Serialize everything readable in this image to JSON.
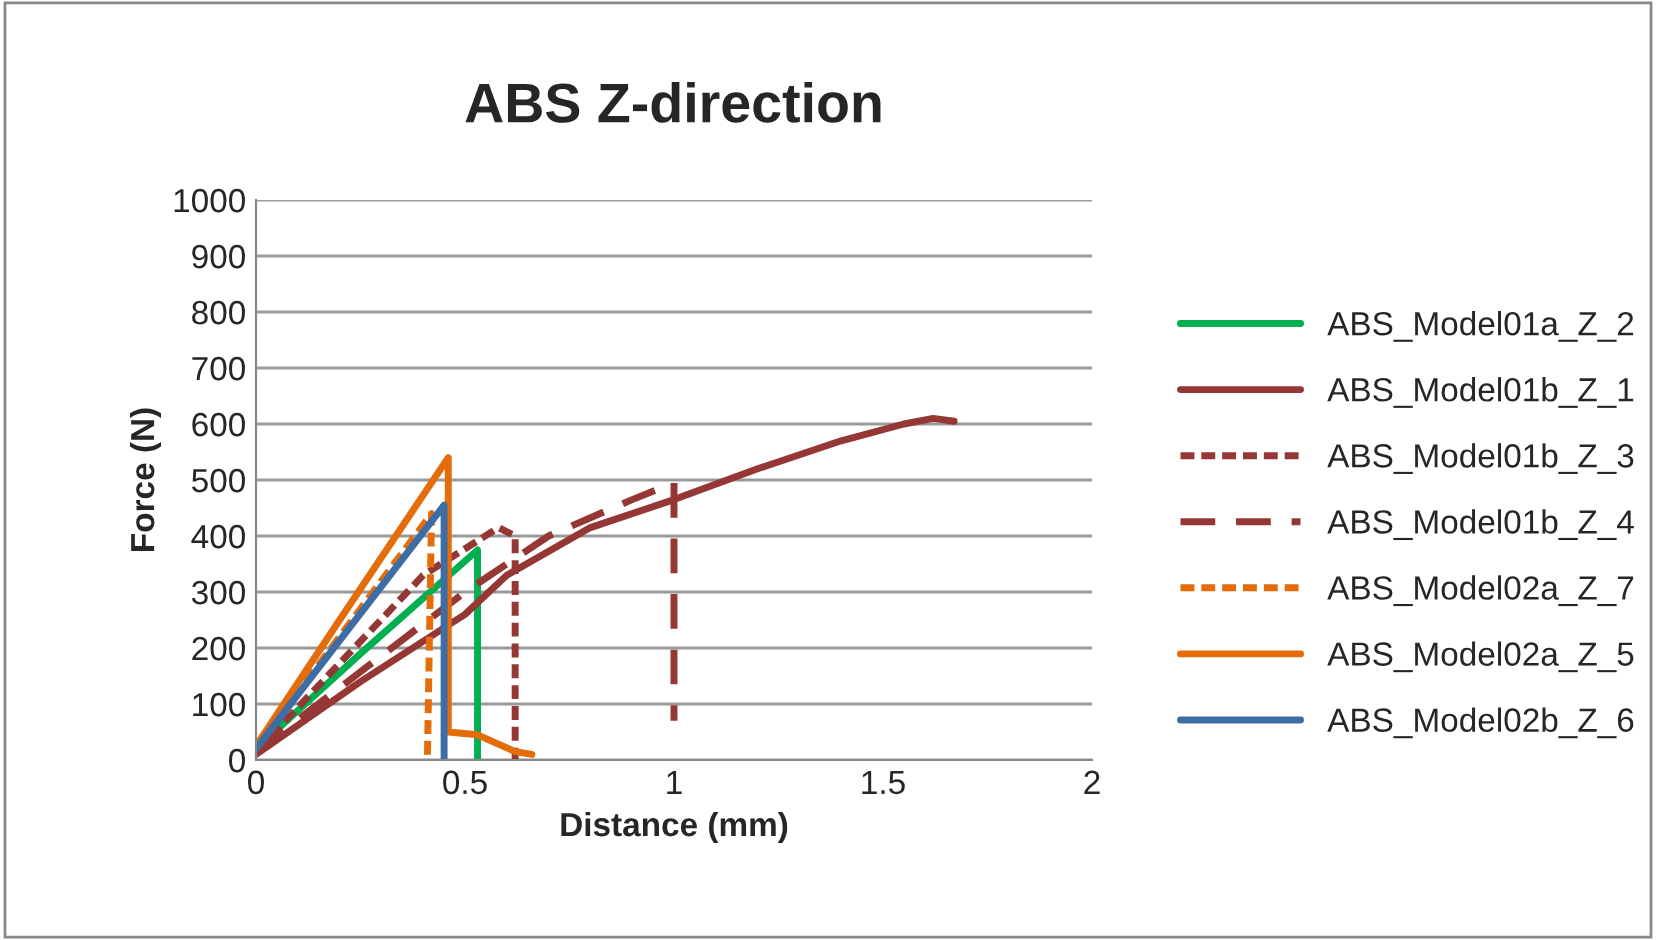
{
  "chart_data": {
    "type": "line",
    "title": "ABS Z-direction",
    "xlabel": "Distance (mm)",
    "ylabel": "Force (N)",
    "xlim": [
      0,
      2
    ],
    "xticks": [
      0,
      0.5,
      1,
      1.5,
      2
    ],
    "ylim": [
      0,
      1000
    ],
    "yticks": [
      0,
      100,
      200,
      300,
      400,
      500,
      600,
      700,
      800,
      900,
      1000
    ],
    "grid": "y",
    "legend": "right",
    "marker": "none",
    "series": [
      {
        "name": "ABS_Model01a_Z_2",
        "color": "#00b050",
        "line_style": "solid",
        "x": [
          0,
          0.25,
          0.53,
          0.53
        ],
        "values": [
          20,
          190,
          375,
          0
        ]
      },
      {
        "name": "ABS_Model01b_Z_1",
        "color": "#953735",
        "line_style": "solid",
        "x": [
          0,
          0.25,
          0.5,
          0.6,
          0.8,
          1.0,
          1.2,
          1.4,
          1.55,
          1.62,
          1.67
        ],
        "values": [
          10,
          140,
          260,
          330,
          415,
          465,
          520,
          570,
          600,
          610,
          605
        ]
      },
      {
        "name": "ABS_Model01b_Z_3",
        "color": "#953735",
        "line_style": "dotted",
        "x": [
          0,
          0.4,
          0.58,
          0.62,
          0.62
        ],
        "values": [
          15,
          330,
          415,
          400,
          0
        ]
      },
      {
        "name": "ABS_Model01b_Z_4",
        "color": "#953735",
        "line_style": "dashed",
        "x": [
          0,
          0.5,
          0.7,
          0.9,
          1.0,
          1.0
        ],
        "values": [
          15,
          300,
          400,
          465,
          495,
          70
        ]
      },
      {
        "name": "ABS_Model02a_Z_7",
        "color": "#e46c0a",
        "line_style": "dotted",
        "x": [
          0,
          0.2,
          0.42,
          0.41
        ],
        "values": [
          20,
          220,
          440,
          0
        ]
      },
      {
        "name": "ABS_Model02a_Z_5",
        "color": "#e46c0a",
        "line_style": "solid",
        "x": [
          0,
          0.2,
          0.46,
          0.46,
          0.53,
          0.62,
          0.66
        ],
        "values": [
          25,
          250,
          540,
          50,
          45,
          15,
          10
        ]
      },
      {
        "name": "ABS_Model02b_Z_6",
        "color": "#3c6ea5",
        "line_style": "solid",
        "x": [
          0,
          0.45,
          0.45
        ],
        "values": [
          20,
          455,
          0
        ]
      }
    ]
  }
}
